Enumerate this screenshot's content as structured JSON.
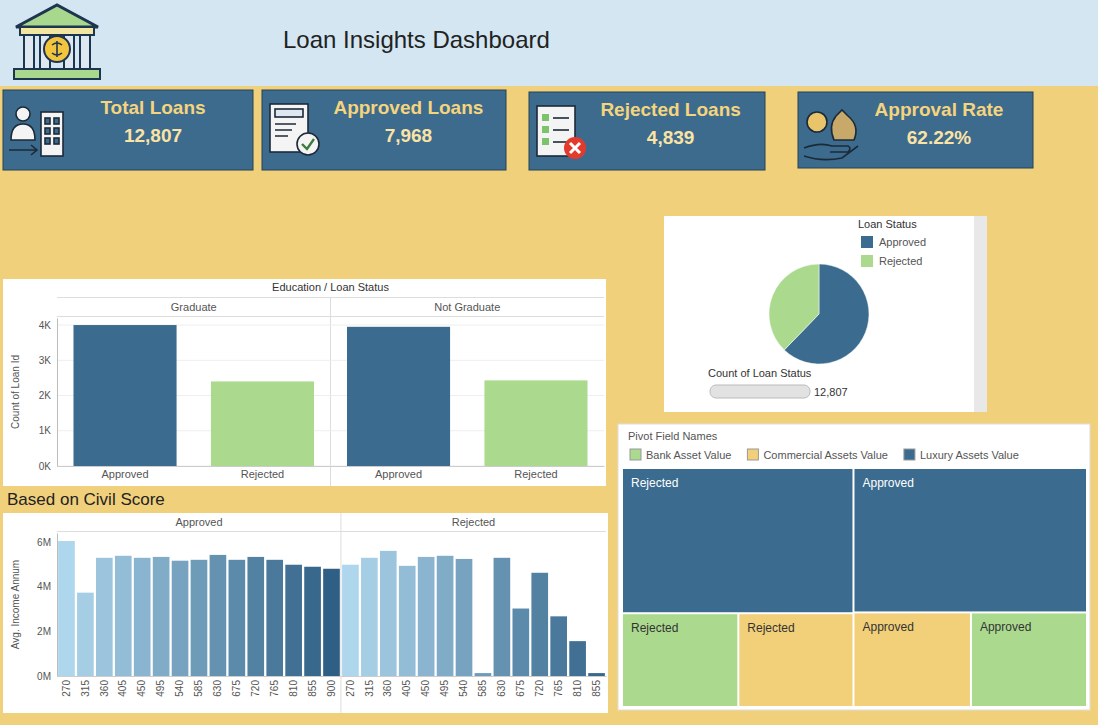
{
  "header": {
    "title": "Loan Insights Dashboard"
  },
  "kpis": [
    {
      "label": "Total Loans",
      "value": "12,807"
    },
    {
      "label": "Approved Loans",
      "value": "7,968"
    },
    {
      "label": "Rejected Loans",
      "value": "4,839"
    },
    {
      "label": "Approval Rate",
      "value": "62.22%"
    }
  ],
  "chart_data": [
    {
      "type": "bar",
      "title": "Education / Loan Status",
      "y_label": "Count of Loan Id",
      "categories": [
        "Graduate",
        "Not Graduate"
      ],
      "series": [
        {
          "name": "Approved",
          "color": "#3b6b8e",
          "values": [
            4000,
            3950
          ]
        },
        {
          "name": "Rejected",
          "color": "#abda8f",
          "values": [
            2400,
            2430
          ]
        }
      ],
      "ylim": [
        0,
        4200
      ],
      "yticks": [
        {
          "value": 0,
          "label": "0K"
        },
        {
          "value": 1000,
          "label": "1K"
        },
        {
          "value": 2000,
          "label": "2K"
        },
        {
          "value": 3000,
          "label": "3K"
        },
        {
          "value": 4000,
          "label": "4K"
        }
      ],
      "grid": true
    },
    {
      "type": "pie",
      "legend_title": "Loan Status",
      "categories": [
        "Approved",
        "Rejected"
      ],
      "values": [
        7968,
        4839
      ],
      "colors": [
        "#3b6b8e",
        "#abda8f"
      ],
      "legend": "top-right",
      "size_legend": {
        "title": "Count of Loan Status",
        "values": [
          12807
        ],
        "value_labels": [
          "12,807"
        ]
      }
    },
    {
      "type": "bar",
      "title": "Based on Civil Score",
      "y_label": "Avg. Income Annum",
      "series": [
        {
          "name": "Approved",
          "categories": [
            "270",
            "315",
            "360",
            "405",
            "450",
            "495",
            "540",
            "585",
            "630",
            "675",
            "720",
            "765",
            "810",
            "855",
            "900"
          ],
          "values": [
            6040000,
            3730000,
            5290000,
            5380000,
            5290000,
            5330000,
            5160000,
            5200000,
            5420000,
            5200000,
            5330000,
            5200000,
            4980000,
            4890000,
            4800000
          ],
          "colors": [
            "#aed6ec",
            "#a5cee5",
            "#9cc5dd",
            "#93bdd6",
            "#8ab4cf",
            "#81acc7",
            "#78a3c0",
            "#6e9bb8",
            "#6592b1",
            "#5c8aaa",
            "#5381a2",
            "#4a799b",
            "#417094",
            "#38688c",
            "#2f5f85"
          ]
        },
        {
          "name": "Rejected",
          "categories": [
            "270",
            "315",
            "360",
            "405",
            "450",
            "495",
            "540",
            "585",
            "630",
            "675",
            "720",
            "765",
            "810",
            "855"
          ],
          "values": [
            4980000,
            5290000,
            5600000,
            4930000,
            5330000,
            5380000,
            5240000,
            130000,
            5290000,
            3020000,
            4620000,
            2670000,
            1560000,
            130000
          ],
          "colors": [
            "#aed6ec",
            "#a5cee5",
            "#9cc5dd",
            "#93bdd6",
            "#8ab4cf",
            "#81acc7",
            "#78a3c0",
            "#6e9bb8",
            "#6592b1",
            "#5c8aaa",
            "#5381a2",
            "#4a799b",
            "#417094",
            "#38688c"
          ]
        }
      ],
      "ylim": [
        0,
        6400000
      ],
      "yticks": [
        {
          "value": 0,
          "label": "0M"
        },
        {
          "value": 2000000,
          "label": "2M"
        },
        {
          "value": 4000000,
          "label": "4M"
        },
        {
          "value": 6000000,
          "label": "6M"
        }
      ],
      "grid": false
    },
    {
      "type": "treemap",
      "legend_title": "Pivot Field Names",
      "legend": "top",
      "groups": [
        "Rejected",
        "Approved"
      ],
      "series": [
        {
          "name": "Bank Asset Value",
          "color": "#abda8f",
          "values": [
            4900000,
            4930000
          ]
        },
        {
          "name": "Commercial Assets Value",
          "color": "#f2cf79",
          "values": [
            4850000,
            4990000
          ]
        },
        {
          "name": "Luxury Assets Value",
          "color": "#3b6b8e",
          "values": [
            15100000,
            15150000
          ]
        }
      ]
    }
  ]
}
